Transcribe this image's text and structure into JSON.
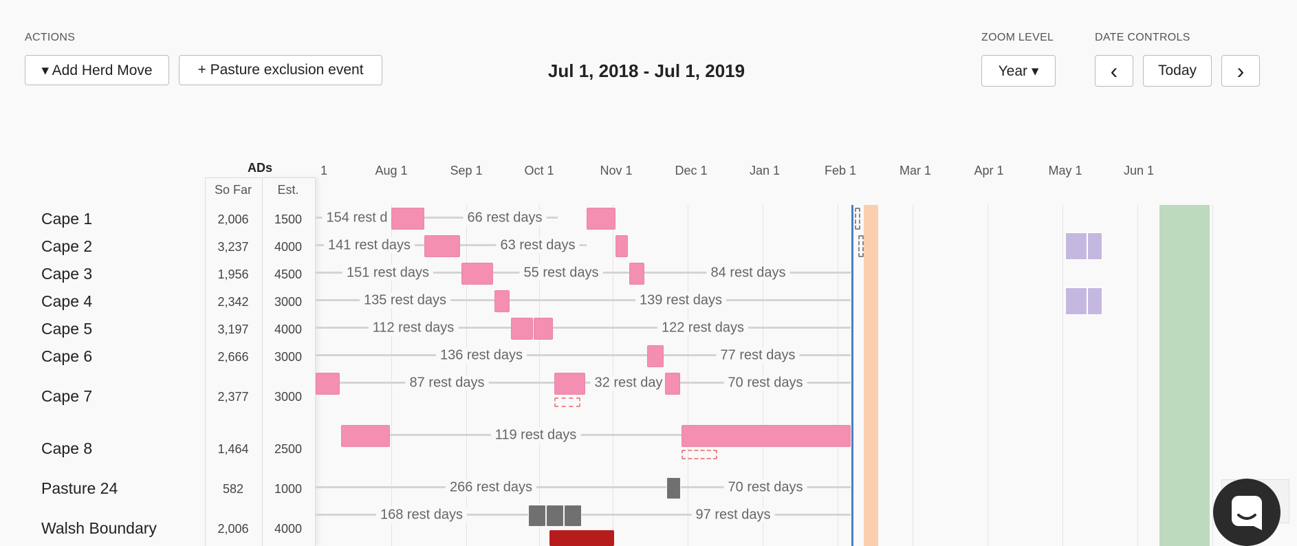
{
  "actions": {
    "heading": "ACTIONS",
    "add_herd_move": "▾ Add Herd Move",
    "pasture_exclusion": "+  Pasture exclusion event"
  },
  "date_range": "Jul 1, 2018 - Jul 1, 2019",
  "zoom": {
    "heading": "ZOOM LEVEL",
    "value": "Year ▾"
  },
  "date_controls": {
    "heading": "DATE CONTROLS",
    "prev_icon": "‹",
    "today": "Today",
    "next_icon": "›"
  },
  "table_header": {
    "ads": "ADs",
    "so_far": "So Far",
    "est": "Est."
  },
  "months": [
    "1",
    "Aug 1",
    "Sep 1",
    "Oct 1",
    "Nov 1",
    "Dec 1",
    "Jan 1",
    "Feb 1",
    "Mar 1",
    "Apr 1",
    "May 1",
    "Jun 1"
  ],
  "pastures": [
    {
      "name": "Cape 1",
      "so_far": "2,006",
      "est": "1500"
    },
    {
      "name": "Cape 2",
      "so_far": "3,237",
      "est": "4000"
    },
    {
      "name": "Cape 3",
      "so_far": "1,956",
      "est": "4500"
    },
    {
      "name": "Cape 4",
      "so_far": "2,342",
      "est": "3000"
    },
    {
      "name": "Cape 5",
      "so_far": "3,197",
      "est": "4000"
    },
    {
      "name": "Cape 6",
      "so_far": "2,666",
      "est": "3000"
    },
    {
      "name": "Cape 7",
      "so_far": "2,377",
      "est": "3000"
    },
    {
      "name": "Cape 8",
      "so_far": "1,464",
      "est": "2500"
    },
    {
      "name": "Pasture 24",
      "so_far": "582",
      "est": "1000"
    },
    {
      "name": "Walsh Boundary",
      "so_far": "2,006",
      "est": "4000"
    }
  ],
  "rest_labels": {
    "r1a": "154 rest d",
    "r1b": "66 rest days",
    "r2a": "141 rest days",
    "r2b": "63 rest days",
    "r3a": "151 rest days",
    "r3b": "55 rest days",
    "r3c": "84 rest days",
    "r4a": "135 rest days",
    "r4b": "139 rest days",
    "r5a": "112 rest days",
    "r5b": "122 rest days",
    "r6a": "136 rest days",
    "r6b": "77 rest days",
    "r7a": "87 rest days",
    "r7b": "32 rest day",
    "r7c": "70 rest days",
    "r8a": "119 rest days",
    "r9a": "266 rest days",
    "r9b": "70 rest days",
    "r10a": "168 rest days",
    "r10b": "97 rest days"
  },
  "colors": {
    "grazing": "#f48fb1",
    "today_line": "#4a7fc1",
    "planned": "#c5b8e0",
    "exclusion": "#bdd9be",
    "highlight": "#fbcfae",
    "hay": "#707070",
    "alert": "#b71c1c"
  },
  "chat_icon": "chat-icon"
}
